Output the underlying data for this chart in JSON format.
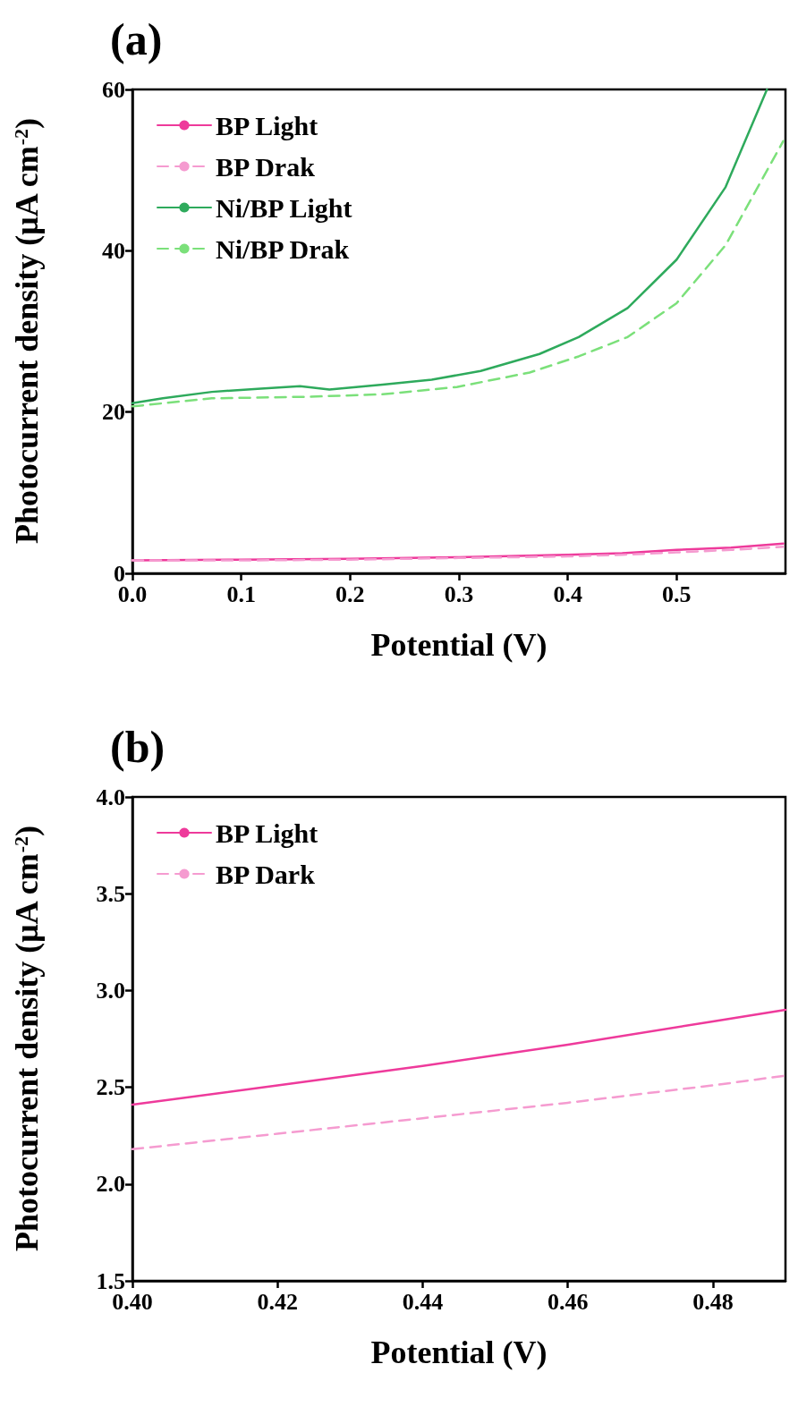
{
  "chart_data": [
    {
      "type": "line",
      "title": "(a)",
      "xlabel": "Potential (V)",
      "ylabel": "Photocurrent density (μA cm$^{-2}$)",
      "xlim": [
        0,
        0.6
      ],
      "xticks": [
        {
          "value": 0,
          "label": "0.0"
        },
        0.1,
        0.2,
        0.3,
        0.4,
        0.5
      ],
      "ylim": [
        0,
        60
      ],
      "yticks": [
        0,
        20,
        40,
        60
      ],
      "grid": false,
      "legend": "top left",
      "marker": "none",
      "series": [
        {
          "name": "BP Light",
          "color": "#ee3a9b",
          "line_style": "solid",
          "x": [
            0,
            0.1,
            0.2,
            0.3,
            0.4,
            0.45,
            0.5,
            0.55,
            0.598
          ],
          "values": [
            1.6,
            1.7,
            1.8,
            2.0,
            2.3,
            2.5,
            2.9,
            3.2,
            3.7
          ]
        },
        {
          "name": "BP Drak",
          "color": "#f59bd0",
          "line_style": "dashed",
          "x": [
            0,
            0.1,
            0.2,
            0.3,
            0.4,
            0.45,
            0.5,
            0.55,
            0.598
          ],
          "values": [
            1.6,
            1.6,
            1.7,
            1.9,
            2.1,
            2.3,
            2.6,
            2.9,
            3.3
          ]
        },
        {
          "name": "Ni/BP Light",
          "color": "#2eaa5c",
          "line_style": "solid",
          "x": [
            0,
            0.028,
            0.073,
            0.118,
            0.154,
            0.181,
            0.23,
            0.275,
            0.32,
            0.374,
            0.41,
            0.455,
            0.5,
            0.545,
            0.583
          ],
          "values": [
            21.1,
            21.7,
            22.5,
            22.9,
            23.2,
            22.8,
            23.4,
            24.0,
            25.1,
            27.2,
            29.3,
            32.9,
            38.9,
            47.9,
            60
          ]
        },
        {
          "name": "Ni/BP Drak",
          "color": "#7be07a",
          "line_style": "dashed",
          "x": [
            0,
            0.073,
            0.163,
            0.23,
            0.298,
            0.365,
            0.41,
            0.455,
            0.5,
            0.545,
            0.598
          ],
          "values": [
            20.7,
            21.7,
            21.9,
            22.2,
            23.1,
            24.9,
            26.9,
            29.3,
            33.5,
            40.7,
            53.6
          ]
        }
      ]
    },
    {
      "type": "line",
      "title": "(b)",
      "xlabel": "Potential (V)",
      "ylabel": "Photocurrent density (μA cm$^{-2}$)",
      "xlim": [
        0.4,
        0.49
      ],
      "xticks": [
        {
          "value": 0.4,
          "label": "0.40"
        },
        0.42,
        0.44,
        0.46,
        0.48
      ],
      "ylim": [
        1.5,
        4.0
      ],
      "yticks": [
        1.5,
        {
          "value": 2,
          "label": "2.0"
        },
        2.5,
        {
          "value": 3,
          "label": "3.0"
        },
        3.5,
        {
          "value": 4,
          "label": "4.0"
        }
      ],
      "grid": false,
      "legend": "top left",
      "marker": "none",
      "series": [
        {
          "name": "BP Light",
          "color": "#ee3a9b",
          "line_style": "solid",
          "x": [
            0.4,
            0.42,
            0.44,
            0.46,
            0.48,
            0.49
          ],
          "values": [
            2.41,
            2.51,
            2.61,
            2.72,
            2.84,
            2.9
          ]
        },
        {
          "name": "BP Dark",
          "color": "#f59bd0",
          "line_style": "dashed",
          "x": [
            0.4,
            0.42,
            0.44,
            0.46,
            0.48,
            0.49
          ],
          "values": [
            2.18,
            2.26,
            2.34,
            2.42,
            2.51,
            2.56
          ]
        }
      ]
    }
  ]
}
